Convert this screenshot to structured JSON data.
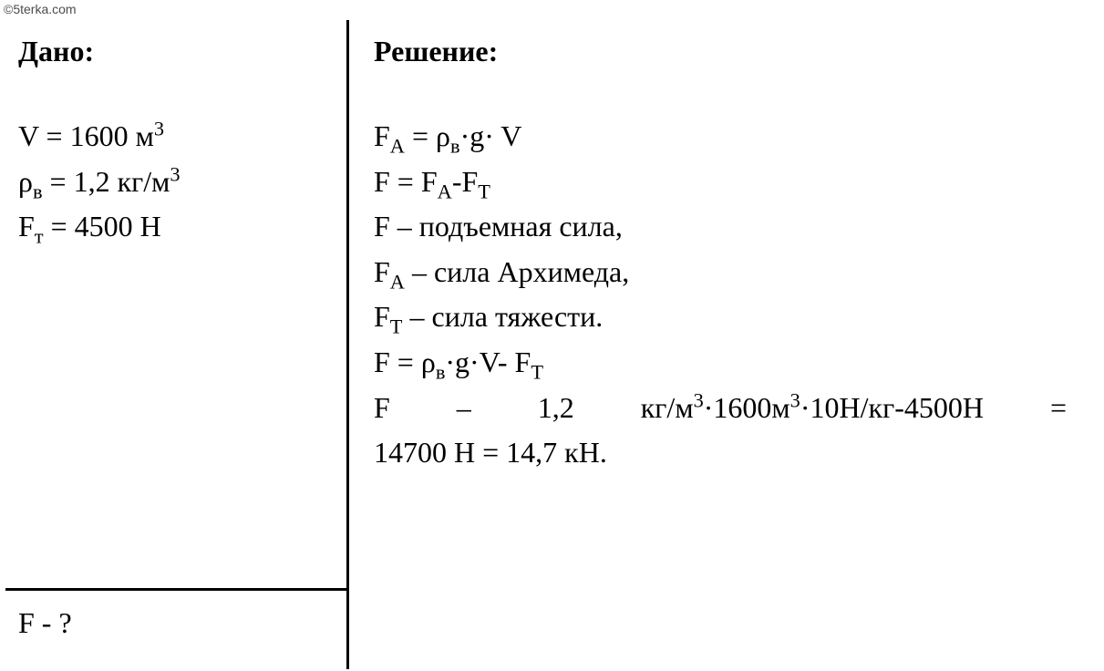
{
  "watermark": "©5terka.com",
  "given": {
    "heading": "Дано:",
    "lines": {
      "v": "V = 1600 м",
      "v_sup": "3",
      "rho_pre": "ρ",
      "rho_sub": "в",
      "rho_rest": " = 1,2 кг/м",
      "rho_sup": "3",
      "ft_pre": "F",
      "ft_sub": "т",
      "ft_rest": " = 4500 Н"
    },
    "find": "F - ?"
  },
  "solution": {
    "heading": "Решение:",
    "l1_a": "F",
    "l1_asub": "A",
    "l1_b": " = ρ",
    "l1_bsub": "в",
    "l1_c": "·g· V",
    "l2_a": "F = F",
    "l2_asub": "A",
    "l2_b": "-F",
    "l2_bsub": "Т",
    "l3": "F – подъемная сила,",
    "l4_a": "F",
    "l4_asub": "A",
    "l4_b": " – сила Архимеда,",
    "l5_a": "F",
    "l5_asub": "Т",
    "l5_b": " – сила тяжести.",
    "l6_a": "F = ρ",
    "l6_asub": "в",
    "l6_b": "·g·V- F",
    "l6_bsub": "Т",
    "l7_seg1": "F",
    "l7_seg2": "–",
    "l7_seg3": "1,2",
    "l7_seg4a": "кг/м",
    "l7_seg4sup1": "3",
    "l7_seg4b": "·1600м",
    "l7_seg4sup2": "3",
    "l7_seg4c": "·10Н/кг-4500Н",
    "l7_seg5": "=",
    "l8": "14700 Н = 14,7 кН."
  }
}
